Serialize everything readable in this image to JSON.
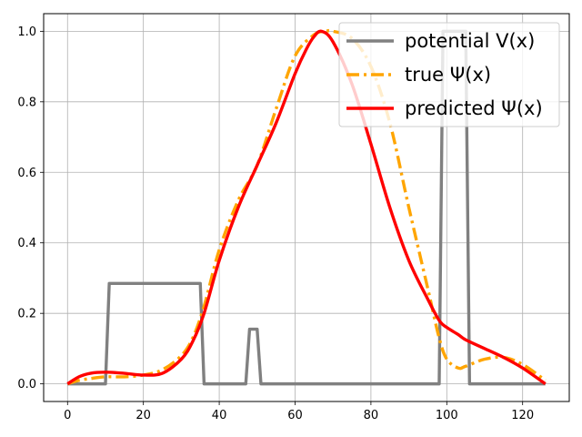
{
  "chart_data": {
    "type": "line",
    "title": "",
    "xlabel": "",
    "ylabel": "",
    "xlim": [
      -6.3,
      132.3
    ],
    "ylim": [
      -0.05,
      1.05
    ],
    "xticks": [
      0,
      20,
      40,
      60,
      80,
      100,
      120
    ],
    "yticks": [
      0.0,
      0.2,
      0.4,
      0.6,
      0.8,
      1.0
    ],
    "xtick_labels": [
      "0",
      "20",
      "40",
      "60",
      "80",
      "100",
      "120"
    ],
    "ytick_labels": [
      "0.0",
      "0.2",
      "0.4",
      "0.6",
      "0.8",
      "1.0"
    ],
    "grid": true,
    "legend_position": "top-right",
    "series": [
      {
        "name": "potential V(x)",
        "color": "#808080",
        "style": "solid",
        "x": [
          0,
          10,
          11,
          35,
          36,
          47,
          48,
          50,
          51,
          98,
          99,
          105,
          106,
          126
        ],
        "y": [
          0,
          0,
          0.285,
          0.285,
          0,
          0,
          0.155,
          0.155,
          0,
          0,
          1.0,
          1.0,
          0,
          0
        ]
      },
      {
        "name": "true Ψ(x)",
        "color": "#FFA500",
        "style": "dashdot",
        "x": [
          0,
          3,
          6,
          10,
          15,
          20,
          25,
          30,
          33,
          36,
          40,
          45,
          50,
          55,
          60,
          65,
          68,
          70,
          75,
          80,
          85,
          90,
          95,
          98,
          100,
          103,
          105,
          110,
          115,
          120,
          126
        ],
        "y": [
          0.0,
          0.01,
          0.015,
          0.02,
          0.02,
          0.025,
          0.04,
          0.08,
          0.13,
          0.22,
          0.38,
          0.52,
          0.62,
          0.78,
          0.93,
          0.99,
          1.0,
          1.0,
          0.98,
          0.9,
          0.74,
          0.5,
          0.27,
          0.13,
          0.07,
          0.045,
          0.05,
          0.07,
          0.075,
          0.055,
          0.01
        ]
      },
      {
        "name": "predicted Ψ(x)",
        "color": "#FF0000",
        "style": "solid",
        "x": [
          0,
          3,
          6,
          10,
          15,
          20,
          25,
          30,
          33,
          36,
          40,
          45,
          50,
          55,
          60,
          63,
          65,
          67,
          70,
          75,
          80,
          85,
          90,
          95,
          98,
          100,
          103,
          105,
          110,
          115,
          120,
          126
        ],
        "y": [
          0.0,
          0.02,
          0.03,
          0.033,
          0.03,
          0.025,
          0.03,
          0.07,
          0.12,
          0.2,
          0.35,
          0.5,
          0.62,
          0.74,
          0.88,
          0.95,
          0.985,
          1.0,
          0.97,
          0.85,
          0.68,
          0.5,
          0.35,
          0.24,
          0.18,
          0.16,
          0.14,
          0.125,
          0.1,
          0.075,
          0.045,
          0.0
        ]
      }
    ]
  }
}
